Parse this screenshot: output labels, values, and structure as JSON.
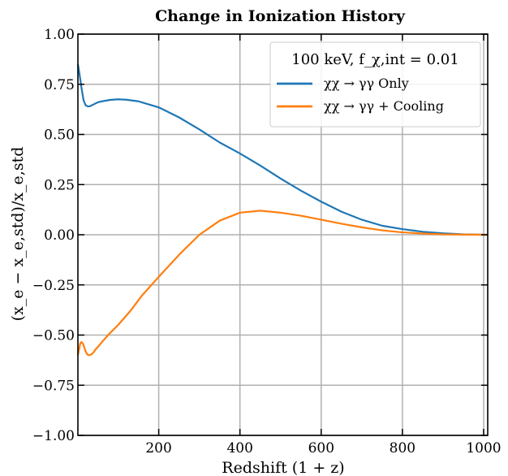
{
  "chart_data": {
    "type": "line",
    "title": "Change in Ionization History",
    "xlabel": "Redshift (1 + z)",
    "ylabel": "(x_e − x_e,std)/x_e,std",
    "xlim": [
      1,
      1010
    ],
    "ylim": [
      -1.0,
      1.0
    ],
    "grid": true,
    "x_ticks": [
      200,
      400,
      600,
      800,
      1000
    ],
    "y_ticks": [
      1.0,
      0.75,
      0.5,
      0.25,
      0.0,
      -0.25,
      -0.5,
      -0.75,
      -1.0
    ],
    "x_tick_labels": [
      "200",
      "400",
      "600",
      "800",
      "1000"
    ],
    "y_tick_labels": [
      "1.00",
      "0.75",
      "0.50",
      "0.25",
      "0.00",
      "−0.25",
      "−0.50",
      "−0.75",
      "−1.00"
    ],
    "legend": {
      "placement": "top-right",
      "title": "100 keV, f_χ,int = 0.01",
      "entries": [
        "χχ → γγ Only",
        "χχ → γγ + Cooling"
      ]
    },
    "series": [
      {
        "name": "χχ → γγ Only",
        "color": "#1f77b4",
        "x": [
          1,
          5,
          10,
          15,
          20,
          25,
          30,
          40,
          50,
          60,
          80,
          100,
          120,
          150,
          200,
          250,
          300,
          350,
          400,
          450,
          500,
          550,
          600,
          650,
          700,
          750,
          800,
          850,
          900,
          950,
          1000,
          1010
        ],
        "y": [
          0.85,
          0.8,
          0.73,
          0.67,
          0.645,
          0.64,
          0.64,
          0.65,
          0.66,
          0.665,
          0.672,
          0.675,
          0.673,
          0.665,
          0.635,
          0.585,
          0.525,
          0.46,
          0.405,
          0.345,
          0.28,
          0.22,
          0.165,
          0.115,
          0.075,
          0.045,
          0.028,
          0.015,
          0.007,
          0.002,
          0.0,
          0.0
        ]
      },
      {
        "name": "χχ → γγ + Cooling",
        "color": "#ff7f0e",
        "x": [
          1,
          4,
          7,
          10,
          14,
          18,
          22,
          26,
          30,
          35,
          40,
          45,
          50,
          60,
          80,
          100,
          130,
          160,
          200,
          250,
          300,
          350,
          400,
          450,
          500,
          550,
          600,
          650,
          700,
          750,
          800,
          850,
          900,
          950,
          1000,
          1010
        ],
        "y": [
          -0.6,
          -0.57,
          -0.54,
          -0.535,
          -0.545,
          -0.57,
          -0.59,
          -0.6,
          -0.6,
          -0.595,
          -0.585,
          -0.57,
          -0.56,
          -0.535,
          -0.49,
          -0.45,
          -0.38,
          -0.3,
          -0.21,
          -0.1,
          0.0,
          0.07,
          0.11,
          0.12,
          0.11,
          0.095,
          0.075,
          0.055,
          0.037,
          0.022,
          0.012,
          0.006,
          0.002,
          0.001,
          0.0,
          0.0
        ]
      }
    ]
  }
}
